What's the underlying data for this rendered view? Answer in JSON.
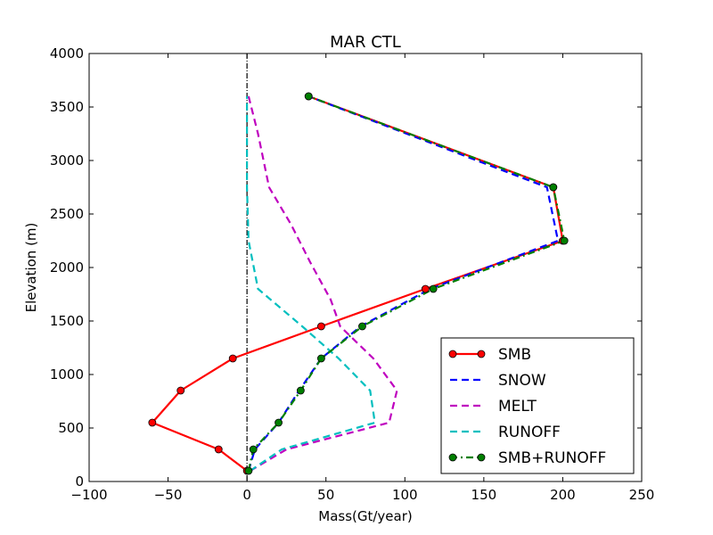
{
  "chart_data": {
    "type": "line",
    "title": "MAR CTL",
    "xlabel": "Mass(Gt/year)",
    "ylabel": "Elevation (m)",
    "xlim": [
      -100,
      250
    ],
    "ylim": [
      0,
      4000
    ],
    "xticks": [
      -100,
      -50,
      0,
      50,
      100,
      150,
      200,
      250
    ],
    "xtick_labels": [
      "−100",
      "−50",
      "0",
      "50",
      "100",
      "150",
      "200",
      "250"
    ],
    "yticks": [
      0,
      500,
      1000,
      1500,
      2000,
      2500,
      3000,
      3500,
      4000
    ],
    "ytick_labels": [
      "0",
      "500",
      "1000",
      "1500",
      "2000",
      "2500",
      "3000",
      "3500",
      "4000"
    ],
    "grid": false,
    "legend_position": "lower-right",
    "zero_line": {
      "x": 0,
      "style": "dash-dot",
      "color": "#000000"
    },
    "series": [
      {
        "name": "SMB",
        "color": "#ff0000",
        "style": "solid",
        "marker": "circle",
        "points": [
          [
            0,
            100
          ],
          [
            -18,
            300
          ],
          [
            -60,
            550
          ],
          [
            -42,
            850
          ],
          [
            -9,
            1150
          ],
          [
            47,
            1450
          ],
          [
            113,
            1800
          ],
          [
            200,
            2250
          ],
          [
            194,
            2750
          ],
          [
            39,
            3600
          ]
        ]
      },
      {
        "name": "SNOW",
        "color": "#0000ff",
        "style": "dashed",
        "marker": "none",
        "points": [
          [
            1,
            100
          ],
          [
            5,
            300
          ],
          [
            20,
            550
          ],
          [
            33,
            850
          ],
          [
            47,
            1150
          ],
          [
            72,
            1450
          ],
          [
            116,
            1800
          ],
          [
            197,
            2250
          ],
          [
            190,
            2750
          ],
          [
            39,
            3600
          ]
        ]
      },
      {
        "name": "MELT",
        "color": "#bf00bf",
        "style": "dashed",
        "marker": "none",
        "points": [
          [
            2,
            100
          ],
          [
            25,
            300
          ],
          [
            90,
            550
          ],
          [
            95,
            850
          ],
          [
            80,
            1150
          ],
          [
            59,
            1450
          ],
          [
            53,
            1700
          ],
          [
            40,
            2050
          ],
          [
            28,
            2400
          ],
          [
            14,
            2750
          ],
          [
            7,
            3250
          ],
          [
            1,
            3600
          ]
        ]
      },
      {
        "name": "RUNOFF",
        "color": "#00bfbf",
        "style": "dashed",
        "marker": "none",
        "points": [
          [
            2,
            100
          ],
          [
            22,
            300
          ],
          [
            81,
            550
          ],
          [
            78,
            850
          ],
          [
            58,
            1150
          ],
          [
            35,
            1450
          ],
          [
            7,
            1800
          ],
          [
            1,
            2250
          ],
          [
            0,
            2750
          ],
          [
            0,
            3600
          ]
        ]
      },
      {
        "name": "SMB+RUNOFF",
        "color": "#007f00",
        "style": "dash-dot",
        "marker": "circle",
        "points": [
          [
            1,
            100
          ],
          [
            4,
            300
          ],
          [
            20,
            550
          ],
          [
            34,
            850
          ],
          [
            47,
            1150
          ],
          [
            73,
            1450
          ],
          [
            118,
            1800
          ],
          [
            201,
            2250
          ],
          [
            194,
            2750
          ],
          [
            39,
            3600
          ]
        ]
      }
    ]
  }
}
